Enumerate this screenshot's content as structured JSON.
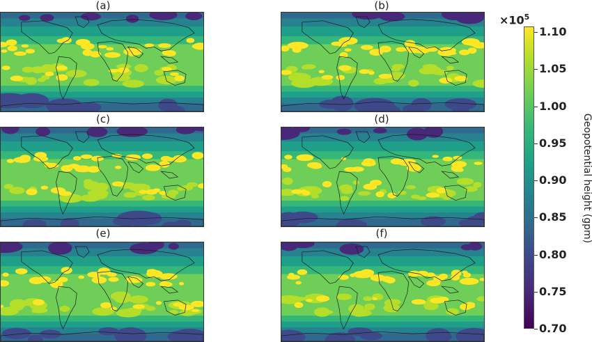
{
  "panels": [
    {
      "label": "(a)"
    },
    {
      "label": "(b)"
    },
    {
      "label": "(c)"
    },
    {
      "label": "(d)"
    },
    {
      "label": "(e)"
    },
    {
      "label": "(f)"
    }
  ],
  "colorbar": {
    "multiplier_base": "×10",
    "multiplier_exp": "5",
    "title": "Geopotential height (gpm)",
    "ticks": [
      "1.10",
      "1.05",
      "1.00",
      "0.95",
      "0.90",
      "0.85",
      "0.80",
      "0.75",
      "0.70"
    ],
    "range": [
      0.7,
      1.1
    ],
    "colormap": "viridis",
    "colors": [
      "#440154",
      "#482878",
      "#3e4989",
      "#31688e",
      "#26828e",
      "#1f9e89",
      "#35b779",
      "#6ece58",
      "#b5de2b",
      "#fde725"
    ]
  },
  "map": {
    "projection": "global equirectangular",
    "features": [
      "coastlines"
    ]
  }
}
